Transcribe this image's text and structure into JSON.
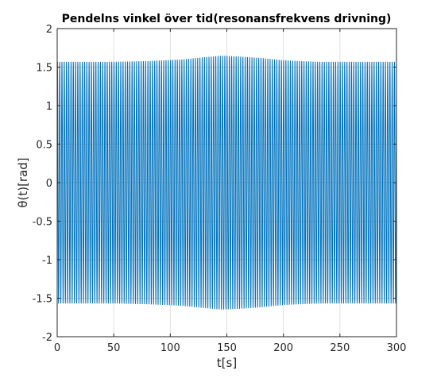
{
  "chart_data": {
    "type": "line",
    "title": "Pendelns vinkel över tid(resonansfrekvens drivning)",
    "xlabel": "t[s]",
    "ylabel": "θ(t)[rad]",
    "xlim": [
      0,
      300
    ],
    "ylim": [
      -2,
      2
    ],
    "xticks": [
      0,
      50,
      100,
      150,
      200,
      250,
      300
    ],
    "xtick_labels": [
      "0",
      "50",
      "100",
      "150",
      "200",
      "250",
      "300"
    ],
    "yticks": [
      -2,
      -1.5,
      -1,
      -0.5,
      0,
      0.5,
      1,
      1.5,
      2
    ],
    "ytick_labels": [
      "-2",
      "-1.5",
      "-1",
      "-0.5",
      "0",
      "0.5",
      "1",
      "1.5",
      "2"
    ],
    "grid": true,
    "legend": "none",
    "series": [
      {
        "color": "#0072BD",
        "oscillation_cycles": 150,
        "envelope": {
          "t": [
            0,
            20,
            50,
            80,
            110,
            130,
            145,
            160,
            180,
            200,
            230,
            260,
            300
          ],
          "amplitude": [
            1.57,
            1.57,
            1.57,
            1.58,
            1.6,
            1.63,
            1.65,
            1.64,
            1.62,
            1.59,
            1.57,
            1.57,
            1.57
          ]
        }
      }
    ]
  }
}
